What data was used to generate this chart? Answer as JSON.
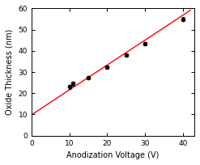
{
  "x_data": [
    10,
    11,
    15,
    20,
    25,
    30,
    40
  ],
  "y_data": [
    23.0,
    24.5,
    27.2,
    32.2,
    38.0,
    43.5,
    55.0
  ],
  "y_err": [
    1.0,
    1.0,
    0.8,
    0.7,
    0.6,
    0.7,
    0.9
  ],
  "line_x": [
    0,
    42
  ],
  "line_y": [
    9.8,
    59.2
  ],
  "line_color": "#ff0000",
  "marker_color": "black",
  "xlabel": "Anodization Voltage (V)",
  "ylabel": "Oxide Thickness (nm)",
  "xlim": [
    0,
    43
  ],
  "ylim": [
    0,
    60
  ],
  "xticks": [
    0,
    10,
    20,
    30,
    40
  ],
  "yticks": [
    0,
    10,
    20,
    30,
    40,
    50,
    60
  ],
  "bg_color": "#ffffff",
  "xlabel_fontsize": 7.0,
  "ylabel_fontsize": 7.0,
  "tick_fontsize": 6.5
}
